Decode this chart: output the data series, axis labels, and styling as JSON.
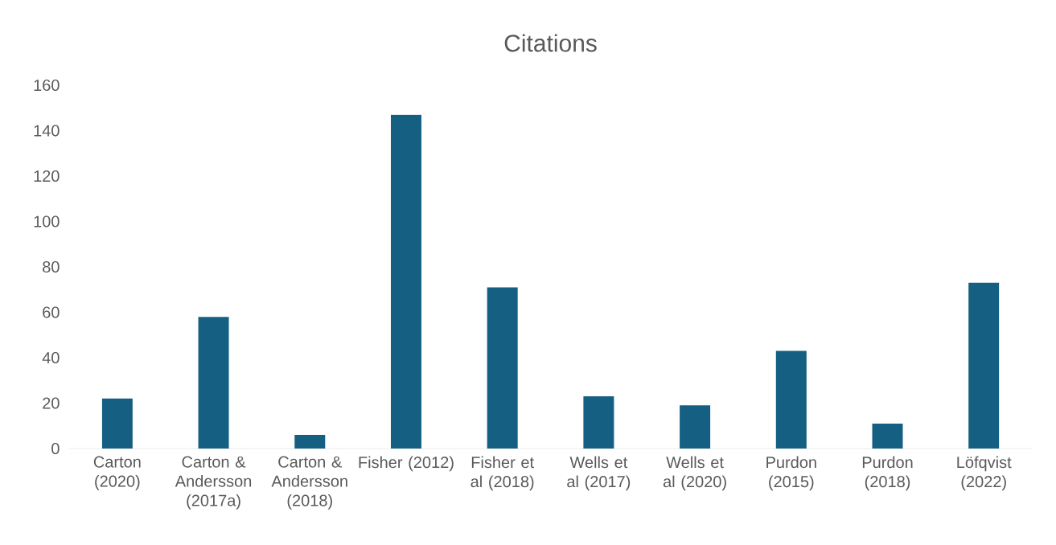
{
  "chart_data": {
    "type": "bar",
    "title": "Citations",
    "categories": [
      "Carton (2020)",
      "Carton & Andersson (2017a)",
      "Carton & Andersson (2018)",
      "Fisher (2012)",
      "Fisher et al (2018)",
      "Wells et al (2017)",
      "Wells et al (2020)",
      "Purdon (2015)",
      "Purdon (2018)",
      "Löfqvist (2022)"
    ],
    "values": [
      22,
      58,
      6,
      147,
      71,
      23,
      19,
      43,
      11,
      73
    ],
    "color": "#156082",
    "ylim": [
      0,
      160
    ],
    "yticks": [
      0,
      20,
      40,
      60,
      80,
      100,
      120,
      140,
      160
    ]
  }
}
